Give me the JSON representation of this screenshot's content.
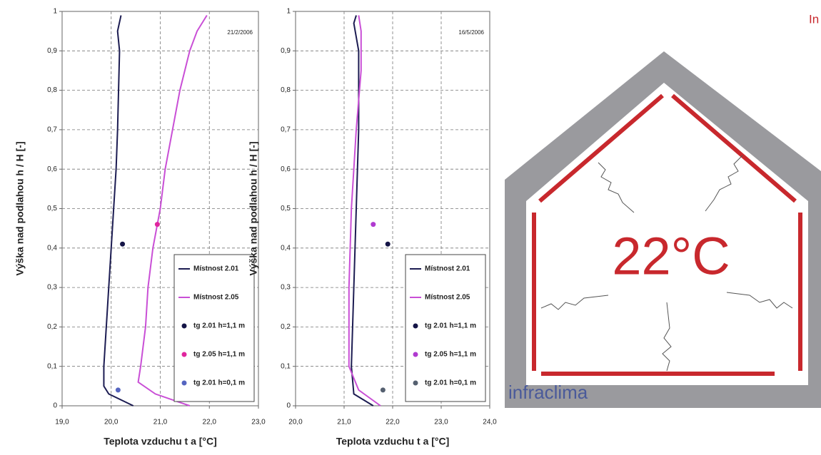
{
  "chart_data": [
    {
      "type": "line",
      "annotation": "21/2/2006",
      "x_label": "Teplota vzduchu t a [°C]",
      "y_label": "Výška nad podlahou h / H [-]",
      "xlim": [
        19,
        23
      ],
      "xticks": [
        {
          "value": 19,
          "label": "19,0"
        },
        {
          "value": 20,
          "label": "20,0"
        },
        {
          "value": 21,
          "label": "21,0"
        },
        {
          "value": 22,
          "label": "22,0"
        },
        {
          "value": 23,
          "label": "23,0"
        }
      ],
      "ylim": [
        0,
        1
      ],
      "yticks": [
        0,
        {
          "value": 0.1,
          "label": "0,1"
        },
        {
          "value": 0.2,
          "label": "0,2"
        },
        {
          "value": 0.3,
          "label": "0,3"
        },
        {
          "value": 0.4,
          "label": "0,4"
        },
        {
          "value": 0.5,
          "label": "0,5"
        },
        {
          "value": 0.6,
          "label": "0,6"
        },
        {
          "value": 0.7,
          "label": "0,7"
        },
        {
          "value": 0.8,
          "label": "0,8"
        },
        {
          "value": 0.9,
          "label": "0,9"
        },
        1
      ],
      "grid": true,
      "legend": "lower right",
      "series": [
        {
          "name": "Místnost 2.01",
          "mode": "line",
          "color": "#1c1c52",
          "x": [
            20.45,
            19.95,
            19.85,
            19.85,
            19.9,
            19.95,
            20.0,
            20.05,
            20.1,
            20.13,
            20.15,
            20.17,
            20.13,
            20.2
          ],
          "values": [
            0,
            0.03,
            0.05,
            0.1,
            0.2,
            0.3,
            0.4,
            0.5,
            0.6,
            0.7,
            0.8,
            0.9,
            0.95,
            0.99
          ]
        },
        {
          "name": "Místnost 2.05",
          "mode": "line",
          "color": "#c94fd6",
          "x": [
            21.6,
            20.9,
            20.55,
            20.6,
            20.7,
            20.75,
            20.85,
            21.0,
            21.1,
            21.25,
            21.4,
            21.6,
            21.75,
            21.95
          ],
          "values": [
            0,
            0.03,
            0.06,
            0.1,
            0.2,
            0.3,
            0.4,
            0.5,
            0.6,
            0.7,
            0.8,
            0.9,
            0.95,
            0.99
          ]
        },
        {
          "name": "tg 2.01 h=1,1 m",
          "mode": "point",
          "color": "#141446",
          "x": [
            20.23
          ],
          "values": [
            0.41
          ]
        },
        {
          "name": "tg 2.05 h=1,1 m",
          "mode": "point",
          "color": "#e0259e",
          "x": [
            20.94
          ],
          "values": [
            0.46
          ]
        },
        {
          "name": "tg 2.01 h=0,1 m",
          "mode": "point",
          "color": "#5565c0",
          "x": [
            20.14
          ],
          "values": [
            0.04
          ]
        }
      ]
    },
    {
      "type": "line",
      "annotation": "16/5/2006",
      "x_label": "Teplota vzduchu t a [°C]",
      "y_label": "Výška nad podlahou h / H [-]",
      "xlim": [
        20,
        24
      ],
      "xticks": [
        {
          "value": 20,
          "label": "20,0"
        },
        {
          "value": 21,
          "label": "21,0"
        },
        {
          "value": 22,
          "label": "22,0"
        },
        {
          "value": 23,
          "label": "23,0"
        },
        {
          "value": 24,
          "label": "24,0"
        }
      ],
      "ylim": [
        0,
        1
      ],
      "yticks": [
        0,
        {
          "value": 0.1,
          "label": "0,1"
        },
        {
          "value": 0.2,
          "label": "0,2"
        },
        {
          "value": 0.3,
          "label": "0,3"
        },
        {
          "value": 0.4,
          "label": "0,4"
        },
        {
          "value": 0.5,
          "label": "0,5"
        },
        {
          "value": 0.6,
          "label": "0,6"
        },
        {
          "value": 0.7,
          "label": "0,7"
        },
        {
          "value": 0.8,
          "label": "0,8"
        },
        {
          "value": 0.9,
          "label": "0,9"
        },
        1
      ],
      "grid": true,
      "legend": "lower right",
      "series": [
        {
          "name": "Místnost 2.01",
          "mode": "line",
          "color": "#1c1c52",
          "x": [
            21.6,
            21.2,
            21.15,
            21.2,
            21.25,
            21.3,
            21.3,
            21.2,
            21.25
          ],
          "values": [
            0,
            0.03,
            0.1,
            0.3,
            0.5,
            0.7,
            0.9,
            0.97,
            0.99
          ]
        },
        {
          "name": "Místnost 2.05",
          "mode": "line",
          "color": "#c94fd6",
          "x": [
            21.75,
            21.3,
            21.1,
            21.1,
            21.15,
            21.25,
            21.35,
            21.35,
            21.3
          ],
          "values": [
            0,
            0.04,
            0.1,
            0.3,
            0.5,
            0.7,
            0.85,
            0.95,
            0.99
          ]
        },
        {
          "name": "tg 2.01 h=1,1 m",
          "mode": "point",
          "color": "#141446",
          "x": [
            21.9
          ],
          "values": [
            0.41
          ]
        },
        {
          "name": "tg 2.05 h=1,1 m",
          "mode": "point",
          "color": "#b03ad0",
          "x": [
            21.6
          ],
          "values": [
            0.46
          ]
        },
        {
          "name": "tg 2.01 h=0,1 m",
          "mode": "point",
          "color": "#556070",
          "x": [
            21.8
          ],
          "values": [
            0.04
          ]
        }
      ]
    }
  ],
  "diagram": {
    "temperature": "22°C",
    "brand": "infraclima",
    "corner_text": "In"
  }
}
